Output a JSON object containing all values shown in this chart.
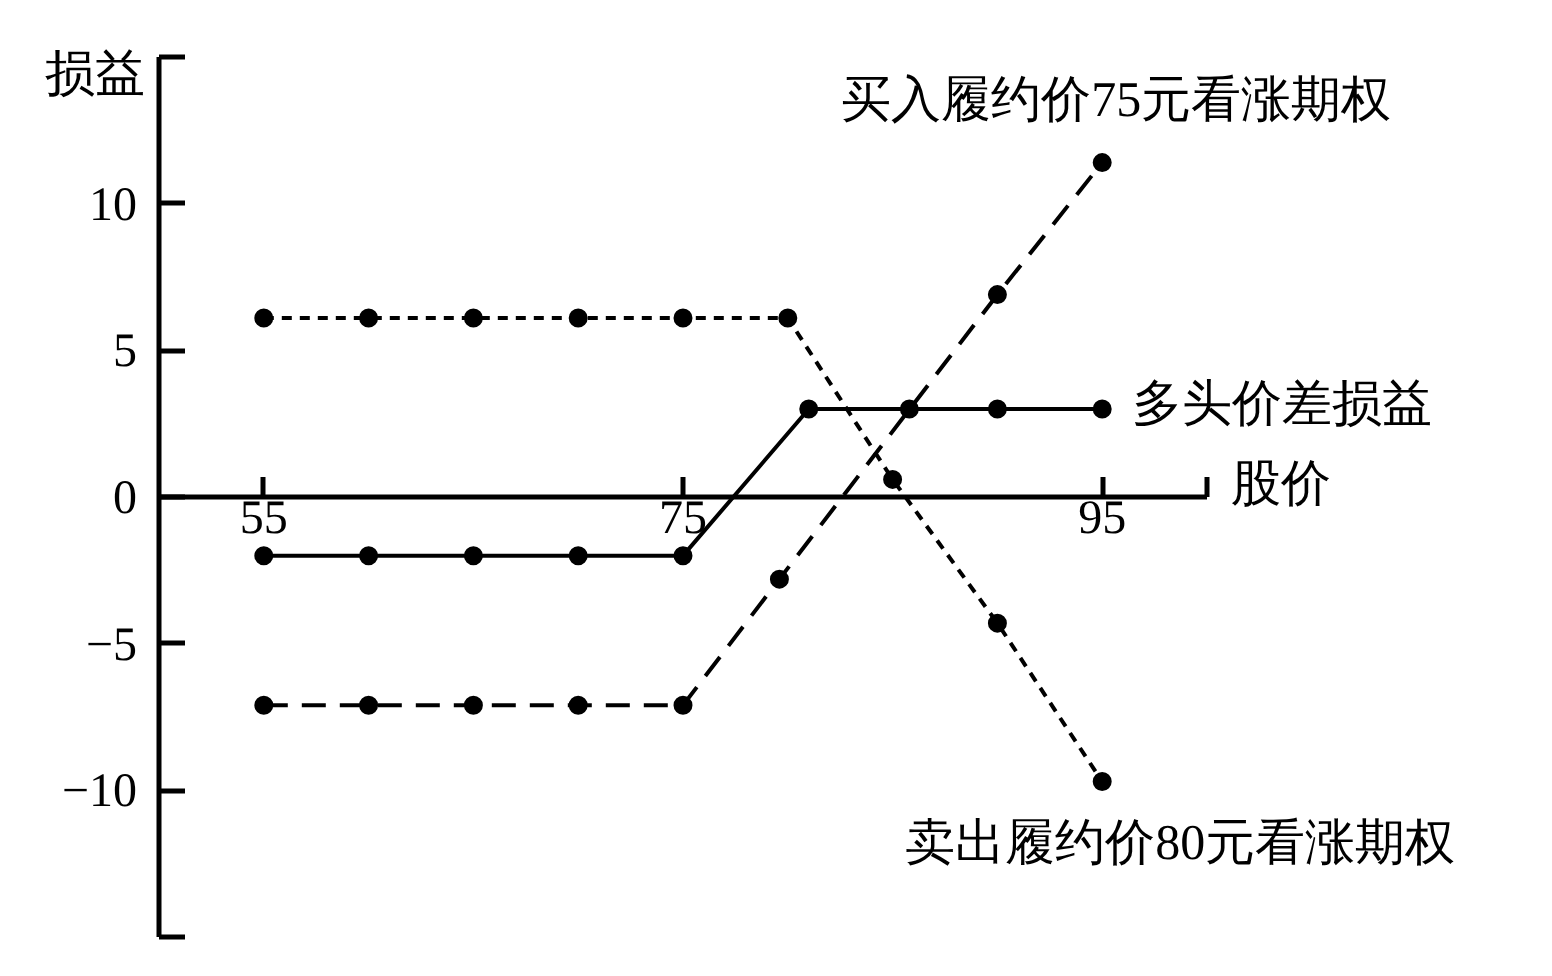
{
  "chart_data": {
    "type": "line",
    "xlabel": "股价",
    "ylabel": "损益",
    "xlim": [
      50,
      100
    ],
    "xticks": [
      55,
      75,
      95,
      {
        "value": 100,
        "label": null
      }
    ],
    "ylim": [
      -15,
      15
    ],
    "yticks": [
      {
        "value": -15,
        "label": null
      },
      {
        "value": -10,
        "label": "−10"
      },
      {
        "value": -5,
        "label": "−5"
      },
      0,
      5,
      10,
      {
        "value": 15,
        "label": null
      }
    ],
    "marker": "circle",
    "series": [
      {
        "name": "买入履约价75元看涨期权",
        "color": "#000000",
        "line_style": "dashed",
        "x": [
          55,
          60,
          65,
          70,
          75,
          79.6,
          90,
          95
        ],
        "values": [
          -7.1,
          -7.1,
          -7.1,
          -7.1,
          -7.1,
          -2.8,
          6.9,
          11.4
        ]
      },
      {
        "name": "多头价差损益",
        "color": "#000000",
        "line_style": "solid",
        "x": [
          55,
          60,
          65,
          70,
          75,
          81,
          85.8,
          90,
          95
        ],
        "values": [
          -2,
          -2,
          -2,
          -2,
          -2,
          3,
          3,
          3,
          3
        ]
      },
      {
        "name": "卖出履约价80元看涨期权",
        "color": "#000000",
        "line_style": "dashed",
        "x": [
          55,
          60,
          65,
          70,
          75,
          80,
          85,
          90,
          95
        ],
        "values": [
          6.1,
          6.1,
          6.1,
          6.1,
          6.1,
          6.1,
          0.6,
          -4.3,
          -9.7
        ]
      }
    ]
  }
}
